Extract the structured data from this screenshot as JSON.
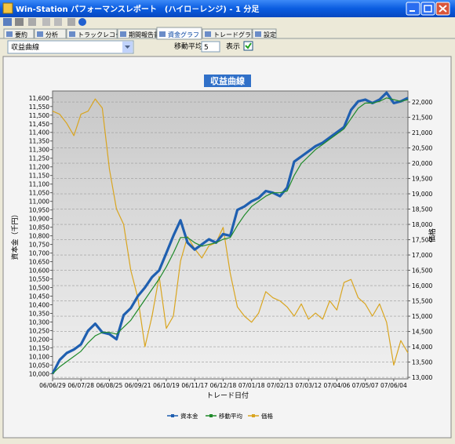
{
  "window": {
    "title": "Win-Station パフォーマンスレポート　(ハイロ－レンジ) - 1 分足",
    "tabs": [
      "要約",
      "分析",
      "トラックレコード",
      "期間報告書",
      "資金グラフ",
      "トレードグラフ",
      "設定"
    ],
    "dropdown": "収益曲線",
    "ma_label": "移動平均",
    "ma_value": "5",
    "show_label": "表示"
  },
  "chart_data": {
    "type": "line",
    "title": "収益曲線",
    "x_label": "トレード日付",
    "y_label": "資本金（千円）",
    "y2_label": "価格",
    "categories": [
      "06/06/29",
      null,
      null,
      null,
      "06/07/28",
      null,
      null,
      null,
      "06/08/25",
      null,
      null,
      null,
      "06/09/21",
      null,
      null,
      null,
      "06/10/19",
      null,
      null,
      null,
      "06/11/17",
      null,
      null,
      null,
      "06/12/18",
      null,
      null,
      null,
      "07/01/18",
      null,
      null,
      null,
      "07/02/13",
      null,
      null,
      null,
      "07/03/12",
      null,
      null,
      null,
      "07/04/06",
      null,
      null,
      null,
      "07/05/07",
      null,
      null,
      null,
      "07/06/04",
      null,
      null
    ],
    "series": [
      {
        "name": "資本金",
        "color": "#1f5fb0",
        "values": [
          10000,
          10080,
          10120,
          10140,
          10170,
          10250,
          10290,
          10240,
          10230,
          10200,
          10340,
          10380,
          10450,
          10500,
          10560,
          10600,
          10700,
          10800,
          10890,
          10760,
          10720,
          10750,
          10780,
          10760,
          10810,
          10800,
          10950,
          10970,
          11000,
          11020,
          11060,
          11050,
          11030,
          11080,
          11230,
          11260,
          11290,
          11320,
          11340,
          11370,
          11400,
          11430,
          11530,
          11580,
          11590,
          11570,
          11590,
          11630,
          11570,
          11580,
          11600
        ]
      },
      {
        "name": "移動平均",
        "color": "#1f8a2a",
        "values": [
          10000,
          10040,
          10070,
          10100,
          10130,
          10180,
          10220,
          10240,
          10240,
          10230,
          10270,
          10310,
          10370,
          10430,
          10490,
          10550,
          10620,
          10700,
          10790,
          10790,
          10760,
          10740,
          10750,
          10760,
          10780,
          10790,
          10860,
          10920,
          10970,
          11000,
          11030,
          11050,
          11050,
          11060,
          11150,
          11220,
          11260,
          11300,
          11330,
          11360,
          11390,
          11420,
          11480,
          11540,
          11570,
          11570,
          11580,
          11600,
          11590,
          11580,
          11590
        ]
      },
      {
        "name": "価格",
        "color": "#d9a520",
        "axis": "y2",
        "values": [
          21700,
          21600,
          21300,
          20900,
          21600,
          21700,
          22100,
          21800,
          19800,
          18500,
          18000,
          16500,
          15600,
          14000,
          15000,
          16300,
          14600,
          15000,
          16800,
          17600,
          17200,
          16900,
          17300,
          17400,
          17900,
          16400,
          15300,
          15000,
          14800,
          15100,
          15800,
          15600,
          15500,
          15300,
          15000,
          15400,
          14900,
          15100,
          14900,
          15500,
          15200,
          16100,
          16200,
          15600,
          15400,
          15000,
          15400,
          14800,
          13400,
          14200,
          13800
        ]
      }
    ],
    "ylim": [
      9970,
      11640
    ],
    "yticks": [
      {
        "value": 10000,
        "label": "10,000"
      },
      {
        "value": 10050,
        "label": "10,050"
      },
      {
        "value": 10100,
        "label": "10,100"
      },
      {
        "value": 10150,
        "label": "10,150"
      },
      {
        "value": 10200,
        "label": "10,200"
      },
      {
        "value": 10250,
        "label": "10,250"
      },
      {
        "value": 10300,
        "label": "10,300"
      },
      {
        "value": 10350,
        "label": "10,350"
      },
      {
        "value": 10400,
        "label": "10,400"
      },
      {
        "value": 10450,
        "label": "10,450"
      },
      {
        "value": 10500,
        "label": "10,500"
      },
      {
        "value": 10550,
        "label": "10,550"
      },
      {
        "value": 10600,
        "label": "10,600"
      },
      {
        "value": 10650,
        "label": "10,650"
      },
      {
        "value": 10700,
        "label": "10,700"
      },
      {
        "value": 10750,
        "label": "10,750"
      },
      {
        "value": 10800,
        "label": "10,800"
      },
      {
        "value": 10850,
        "label": "10,850"
      },
      {
        "value": 10900,
        "label": "10,900"
      },
      {
        "value": 10950,
        "label": "10,950"
      },
      {
        "value": 11000,
        "label": "11,000"
      },
      {
        "value": 11050,
        "label": "11,050"
      },
      {
        "value": 11100,
        "label": "11,100"
      },
      {
        "value": 11150,
        "label": "11,150"
      },
      {
        "value": 11200,
        "label": "11,200"
      },
      {
        "value": 11250,
        "label": "11,250"
      },
      {
        "value": 11300,
        "label": "11,300"
      },
      {
        "value": 11350,
        "label": "11,350"
      },
      {
        "value": 11400,
        "label": "11,400"
      },
      {
        "value": 11450,
        "label": "11,450"
      },
      {
        "value": 11500,
        "label": "11,500"
      },
      {
        "value": 11550,
        "label": "11,550"
      },
      {
        "value": 11600,
        "label": "11,600"
      }
    ],
    "y2lim": [
      12950,
      22360
    ],
    "y2ticks": [
      {
        "value": 13000,
        "label": "13,000"
      },
      {
        "value": 13500,
        "label": "13,500"
      },
      {
        "value": 14000,
        "label": "14,000"
      },
      {
        "value": 14500,
        "label": "14,500"
      },
      {
        "value": 15000,
        "label": "15,000"
      },
      {
        "value": 15500,
        "label": "15,500"
      },
      {
        "value": 16000,
        "label": "16,000"
      },
      {
        "value": 16500,
        "label": "16,500"
      },
      {
        "value": 17000,
        "label": "17,000"
      },
      {
        "value": 17500,
        "label": "17,500"
      },
      {
        "value": 18000,
        "label": "18,000"
      },
      {
        "value": 18500,
        "label": "18,500"
      },
      {
        "value": 19000,
        "label": "19,000"
      },
      {
        "value": 19500,
        "label": "19,500"
      },
      {
        "value": 20000,
        "label": "20,000"
      },
      {
        "value": 20500,
        "label": "20,500"
      },
      {
        "value": 21000,
        "label": "21,000"
      },
      {
        "value": 21500,
        "label": "21,500"
      },
      {
        "value": 22000,
        "label": "22,000"
      }
    ],
    "grid": true,
    "legend": "bottom"
  }
}
